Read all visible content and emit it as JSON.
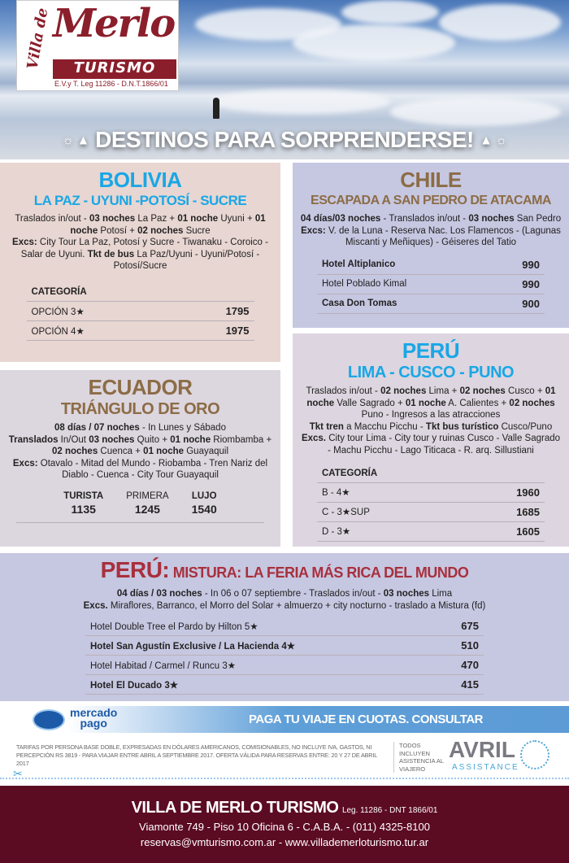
{
  "header": {
    "logo_text": "Villa de Merlo TURISMO",
    "logo_legal": "E.V.y T. Leg 11286 - D.N.T.1866/01",
    "slogan": "DESTINOS PARA SORPRENDERSE!",
    "slogan_icons": [
      "sun-icon",
      "mountain-icon"
    ]
  },
  "bolivia": {
    "title": "BOLIVIA",
    "subtitle": "LA PAZ - UYUNI -POTOSÍ - SUCRE",
    "desc": [
      [
        [
          "Traslados in/out - ",
          0
        ],
        [
          "03 noches",
          1
        ],
        [
          " La Paz + ",
          0
        ],
        [
          "01 noche",
          1
        ],
        [
          " Uyuni + ",
          0
        ],
        [
          "01 noche",
          1
        ],
        [
          " Potosí + ",
          0
        ],
        [
          "02 noches",
          1
        ],
        [
          " Sucre",
          0
        ]
      ],
      [
        [
          "Excs:",
          1
        ],
        [
          " City Tour La Paz, Potosí y Sucre - Tiwanaku - Coroico - Salar de Uyuni. ",
          0
        ],
        [
          "Tkt de bus",
          1
        ],
        [
          " La Paz/Uyuni - Uyuni/Potosí - Potosí/Sucre",
          0
        ]
      ]
    ],
    "table_header": "CATEGORÍA",
    "rows": [
      {
        "name": "OPCIÓN 3★",
        "price": "1795"
      },
      {
        "name": "OPCIÓN 4★",
        "price": "1975"
      }
    ]
  },
  "chile": {
    "title": "CHILE",
    "subtitle": "ESCAPADA A SAN PEDRO DE ATACAMA",
    "desc": [
      [
        [
          "04 días/03 noches",
          1
        ],
        [
          " - Translados in/out - ",
          0
        ],
        [
          "03 noches",
          1
        ],
        [
          " San Pedro",
          0
        ]
      ],
      [
        [
          "Excs:",
          1
        ],
        [
          " V. de la Luna - Reserva Nac. Los Flamencos - (Lagunas Miscanti y Meñiques) - Géiseres del Tatio",
          0
        ]
      ]
    ],
    "rows": [
      {
        "name": "Hotel Altiplanico",
        "price": "990",
        "bold": true
      },
      {
        "name": "Hotel Poblado Kimal",
        "price": "990",
        "bold": false
      },
      {
        "name": "Casa Don Tomas",
        "price": "900",
        "bold": true
      }
    ]
  },
  "ecuador": {
    "title": "ECUADOR",
    "subtitle": "TRIÁNGULO DE ORO",
    "desc": [
      [
        [
          "08 días / 07 noches",
          1
        ],
        [
          " - In Lunes y Sábado",
          0
        ]
      ],
      [
        [
          "Translados",
          1
        ],
        [
          " In/Out  ",
          0
        ],
        [
          "03 noches",
          1
        ],
        [
          " Quito + ",
          0
        ],
        [
          "01 noche",
          1
        ],
        [
          " Riombamba + ",
          0
        ],
        [
          "02 noches",
          1
        ],
        [
          " Cuenca + ",
          0
        ],
        [
          "01 noche",
          1
        ],
        [
          " Guayaquil",
          0
        ]
      ],
      [
        [
          "Excs:",
          1
        ],
        [
          " Otavalo - Mitad del Mundo - Riobamba - Tren Nariz del Diablo - Cuenca - City Tour Guayaquil",
          0
        ]
      ]
    ],
    "categories": [
      {
        "name": "TURISTA",
        "price": "1135"
      },
      {
        "name": "PRIMERA",
        "price": "1245"
      },
      {
        "name": "LUJO",
        "price": "1540"
      }
    ]
  },
  "peru": {
    "title": "PERÚ",
    "subtitle": "LIMA - CUSCO - PUNO",
    "desc": [
      [
        [
          "Traslados in/out - ",
          0
        ],
        [
          "02 noches",
          1
        ],
        [
          " Lima + ",
          0
        ],
        [
          "02 noches",
          1
        ],
        [
          " Cusco + ",
          0
        ],
        [
          "01 noche",
          1
        ],
        [
          " Valle Sagrado + ",
          0
        ],
        [
          "01 noche",
          1
        ],
        [
          " A. Calientes  + ",
          0
        ],
        [
          "02 noches",
          1
        ],
        [
          " Puno - Ingresos a las atracciones",
          0
        ]
      ],
      [
        [
          "Tkt tren",
          1
        ],
        [
          " a Macchu Picchu - ",
          0
        ],
        [
          "Tkt bus turístico",
          1
        ],
        [
          " Cusco/Puno",
          0
        ]
      ],
      [
        [
          "Excs.",
          1
        ],
        [
          " City tour Lima - City tour y ruinas Cusco - Valle Sagrado - Machu Picchu - Lago Titicaca - R. arq. Sillustiani",
          0
        ]
      ]
    ],
    "table_header": "CATEGORÍA",
    "rows": [
      {
        "name": "B - 4★",
        "price": "1960"
      },
      {
        "name": "C - 3★SUP",
        "price": "1685"
      },
      {
        "name": "D - 3★",
        "price": "1605"
      }
    ]
  },
  "mistura": {
    "title": "PERÚ:",
    "subtitle": "MISTURA: LA FERIA MÁS RICA DEL MUNDO",
    "desc": [
      [
        [
          "04 días / 03 noches",
          1
        ],
        [
          " - In 06 o 07 septiembre - Traslados in/out - ",
          0
        ],
        [
          "03 noches",
          1
        ],
        [
          " Lima",
          0
        ]
      ],
      [
        [
          "Excs.",
          1
        ],
        [
          " Miraflores, Barranco, el Morro del Solar + almuerzo + city nocturno - traslado a Mistura (fd)",
          0
        ]
      ]
    ],
    "rows": [
      {
        "name": "Hotel Double Tree el Pardo by Hilton 5★",
        "price": "675",
        "bold": false
      },
      {
        "name": "Hotel San Agustín Exclusive / La Hacienda 4★",
        "price": "510",
        "bold": true
      },
      {
        "name": "Hotel Habitad / Carmel / Runcu 3★",
        "price": "470",
        "bold": false
      },
      {
        "name": "Hotel El Ducado 3★",
        "price": "415",
        "bold": true
      }
    ]
  },
  "banner": {
    "brand_line1": "mercado",
    "brand_line2": "pago",
    "text": "PAGA TU VIAJE EN CUOTAS. CONSULTAR"
  },
  "disclaimer": "TARIFAS POR PERSONA BASE DOBLE, EXPRESADAS EN DÓLARES AMERICANOS, COMISIONABLES, NO INCLUYE IVA, GASTOS, NI PERCEPCIÓN RS 3819 - PARA VIAJAR ENTRE ABRIL A SEPTIEMBRE 2017. OFERTA VÁLIDA PARA RESERVAS  ENTRE: 20 Y 27 DE ABRIL 2017",
  "assistance": {
    "note": "TODOS INCLUYEN ASISTENCIA AL VIAJERO",
    "brand": "AVRIL",
    "brand_sub": "ASSISTANCE"
  },
  "footer": {
    "name": "VILLA DE MERLO TURISMO",
    "legal": "Leg. 11286 - DNT 1866/01",
    "address": "Viamonte 749 - Piso 10 Oficina 6 - C.A.B.A. - (011) 4325-8100",
    "contact": "reservas@vmturismo.com.ar  -  www.villademerloturismo.tur.ar"
  },
  "colors": {
    "bolivia_bg": "#e8d6d2",
    "chile_bg": "#c6c7e1",
    "ecuador_bg": "#dcd6df",
    "peru_bg": "#ddd5df",
    "mistura_bg": "#c6c7e1",
    "footer_bg": "#5b0b22",
    "accent_blue": "#19a7e6",
    "accent_gold": "#8c6c46",
    "accent_red": "#a8303c"
  }
}
